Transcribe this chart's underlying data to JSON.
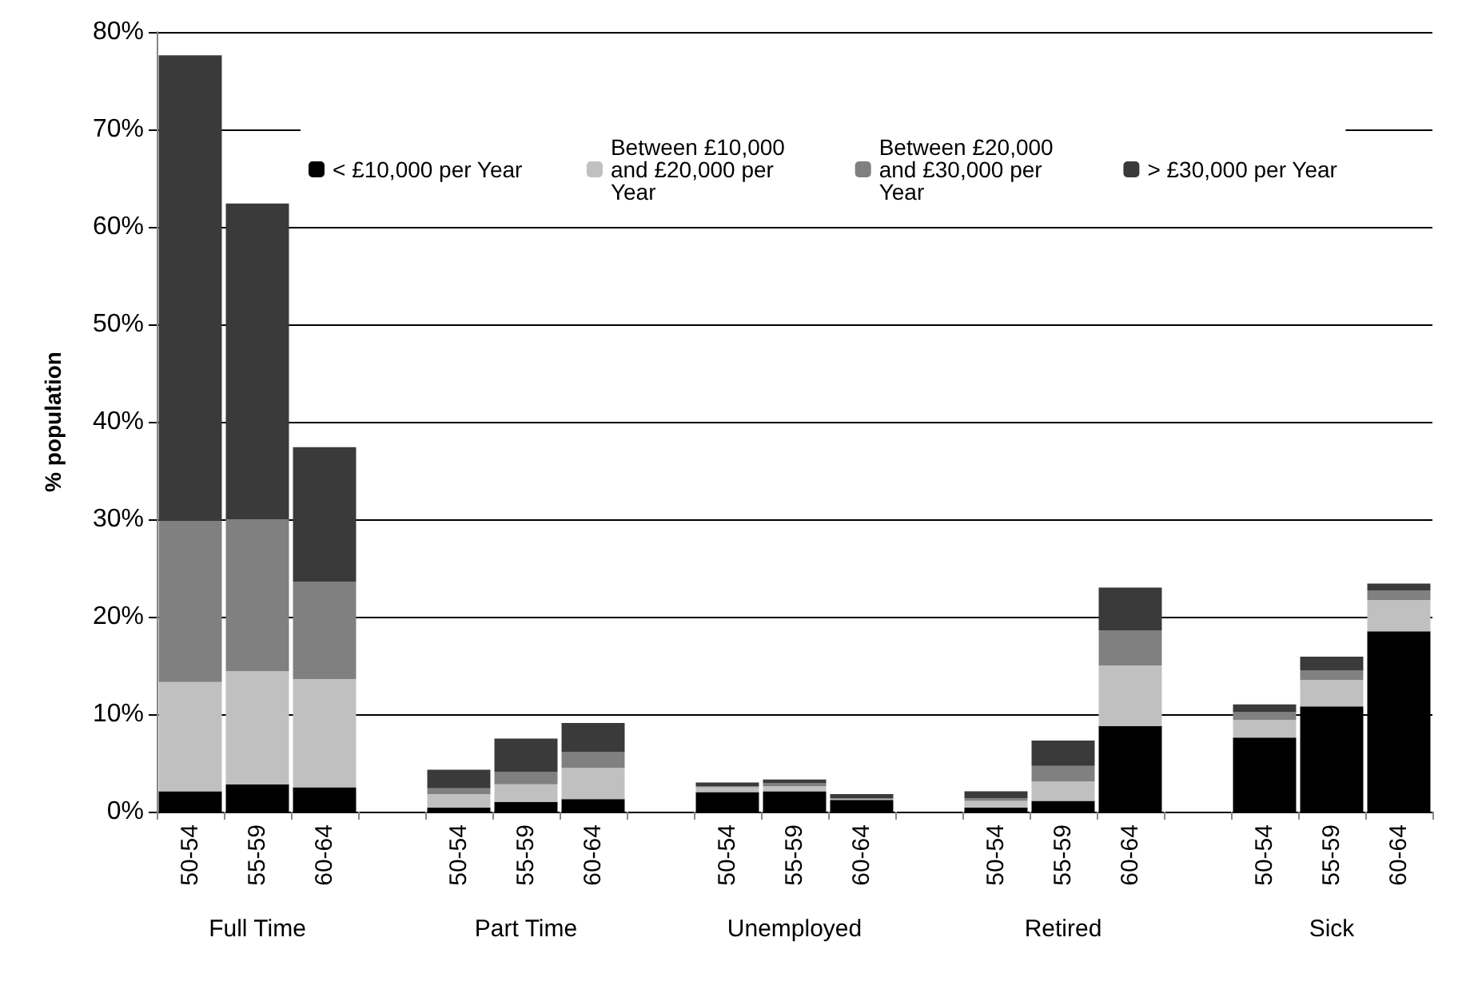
{
  "chart_data": {
    "type": "bar",
    "stacked": true,
    "ylabel": "% population",
    "categories": [
      "50-54",
      "55-59",
      "60-64",
      null,
      "50-54",
      "55-59",
      "60-64",
      null,
      "50-54",
      "55-59",
      "60-64",
      null,
      "50-54",
      "55-59",
      "60-64",
      null,
      "50-54",
      "55-59",
      "60-64"
    ],
    "annotations": [
      "Full Time",
      "Part Time",
      "Unemployed",
      "Retired",
      "Sick"
    ],
    "series": [
      {
        "name": "< £10,000 per Year",
        "color": "#000000",
        "values": [
          2.1,
          2.8,
          2.5,
          null,
          0.4,
          1.0,
          1.3,
          null,
          2.0,
          2.1,
          1.2,
          null,
          0.4,
          1.1,
          8.8,
          null,
          7.6,
          10.8,
          18.5
        ]
      },
      {
        "name": "Between £10,000 and £20,000 per Year",
        "color": "#c0c0c0",
        "values": [
          11.2,
          11.6,
          11.1,
          null,
          1.4,
          1.8,
          3.2,
          null,
          0.5,
          0.5,
          0.1,
          null,
          0.7,
          2.0,
          6.2,
          null,
          1.8,
          2.7,
          3.2
        ]
      },
      {
        "name": "Between £20,000 and £30,000 per Year",
        "color": "#808080",
        "values": [
          16.5,
          15.6,
          10.0,
          null,
          0.6,
          1.3,
          1.6,
          null,
          0.1,
          0.3,
          0.1,
          null,
          0.3,
          1.6,
          3.6,
          null,
          0.8,
          1.0,
          1.0
        ]
      },
      {
        "name": "> £30,000 per Year",
        "color": "#3a3a3a",
        "values": [
          47.8,
          32.4,
          13.8,
          null,
          1.9,
          3.4,
          3.0,
          null,
          0.4,
          0.4,
          0.4,
          null,
          0.7,
          2.6,
          4.4,
          null,
          0.8,
          1.4,
          0.7
        ]
      }
    ],
    "ylim": [
      0,
      80
    ],
    "yticks": [
      {
        "value": 0,
        "label": "0%"
      },
      {
        "value": 10,
        "label": "10%"
      },
      {
        "value": 20,
        "label": "20%"
      },
      {
        "value": 30,
        "label": "30%"
      },
      {
        "value": 40,
        "label": "40%"
      },
      {
        "value": 50,
        "label": "50%"
      },
      {
        "value": 60,
        "label": "60%"
      },
      {
        "value": 70,
        "label": "70%"
      },
      {
        "value": 80,
        "label": "80%"
      }
    ],
    "grid": "y",
    "legend": "top"
  }
}
